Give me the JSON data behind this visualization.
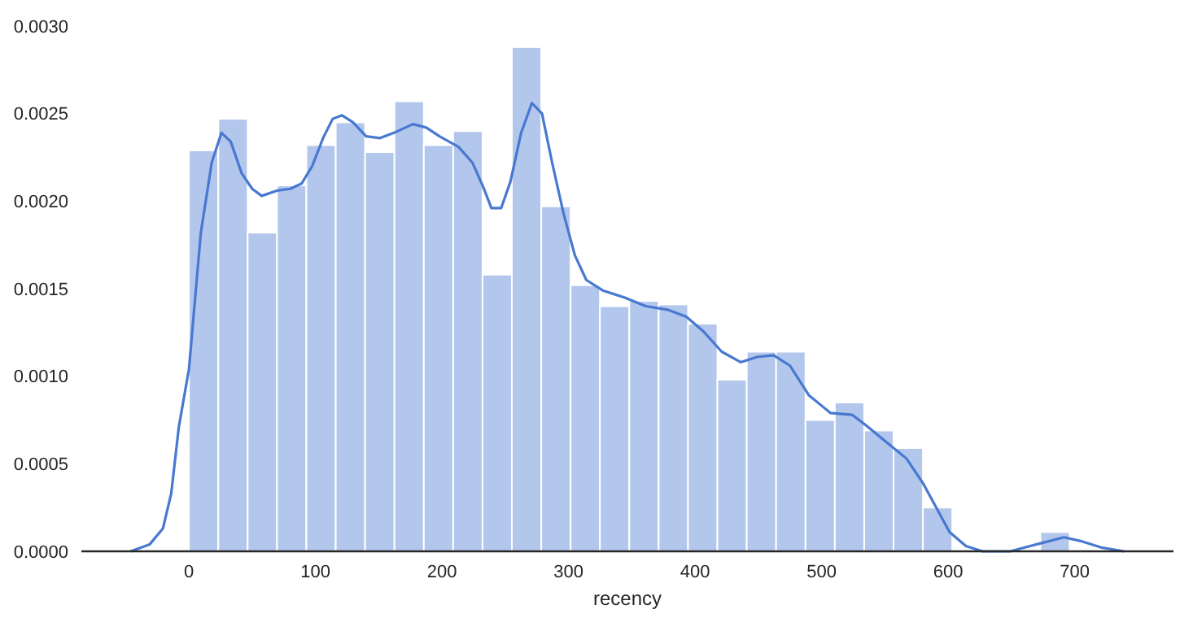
{
  "chart_data": {
    "type": "histogram",
    "xlabel": "recency",
    "xlim": [
      -85,
      778
    ],
    "xticks": [
      0,
      100,
      200,
      300,
      400,
      500,
      600,
      700
    ],
    "ylim": [
      0,
      0.003
    ],
    "yticks": [
      {
        "value": 0,
        "label": "0.0000"
      },
      {
        "value": 0.0005,
        "label": "0.0005"
      },
      {
        "value": 0.001,
        "label": "0.0010"
      },
      {
        "value": 0.0015,
        "label": "0.0015"
      },
      {
        "value": 0.002,
        "label": "0.0020"
      },
      {
        "value": 0.0025,
        "label": "0.0025"
      },
      {
        "value": 0.003,
        "label": "0.0030"
      }
    ],
    "grid": false,
    "series": [
      {
        "color": "#b3c7ec",
        "bins": [
          0,
          23.2,
          46.4,
          69.6,
          92.8,
          116,
          139.2,
          162.4,
          185.6,
          208.8,
          232,
          255.2,
          278.4,
          301.6,
          324.8,
          348,
          371.2,
          394.4,
          417.6,
          440.8,
          464,
          487.2,
          510.4,
          533.6,
          556.8,
          580,
          603.2,
          626.4,
          649.6,
          672.8,
          696
        ],
        "values": [
          0.00229,
          0.00247,
          0.00182,
          0.00209,
          0.00232,
          0.00245,
          0.00228,
          0.00257,
          0.00232,
          0.0024,
          0.00158,
          0.00288,
          0.00197,
          0.00152,
          0.0014,
          0.00143,
          0.00141,
          0.0013,
          0.00098,
          0.00114,
          0.00114,
          0.00075,
          0.00085,
          0.00069,
          0.00059,
          0.00025,
          0,
          0,
          0,
          0.00011
        ]
      },
      {
        "type": "line",
        "color": "#4878d0",
        "marker": "none",
        "line_style": "solid",
        "x": [
          -46,
          -31,
          -20.6,
          -14,
          -8,
          0,
          9.4,
          18,
          25.7,
          33,
          41.6,
          50,
          57.5,
          69.5,
          80,
          89,
          97.4,
          106,
          113.6,
          121,
          129.6,
          140,
          151,
          162,
          177,
          187.5,
          198,
          213,
          224,
          232.6,
          239,
          246.7,
          254,
          262.5,
          271,
          279,
          287,
          296,
          305,
          314,
          327,
          344,
          361,
          378,
          393,
          406,
          421,
          436,
          449,
          462,
          475,
          490,
          507,
          524,
          535,
          550,
          567,
          580,
          589,
          601,
          614,
          627,
          649,
          670,
          691.5,
          704,
          722,
          739
        ],
        "values": [
          0,
          4e-05,
          0.00013,
          0.00033,
          0.00071,
          0.00104,
          0.00182,
          0.00222,
          0.00239,
          0.00234,
          0.00216,
          0.00207,
          0.00203,
          0.00206,
          0.00207,
          0.0021,
          0.0022,
          0.00236,
          0.00247,
          0.00249,
          0.00245,
          0.00237,
          0.00236,
          0.00239,
          0.00244,
          0.00242,
          0.00237,
          0.00231,
          0.00222,
          0.00208,
          0.00196,
          0.00196,
          0.00211,
          0.00239,
          0.00256,
          0.0025,
          0.00222,
          0.00193,
          0.00169,
          0.00155,
          0.00149,
          0.00145,
          0.0014,
          0.00138,
          0.00134,
          0.00126,
          0.00114,
          0.00108,
          0.00111,
          0.00112,
          0.00106,
          0.00089,
          0.00079,
          0.00078,
          0.00072,
          0.00063,
          0.00053,
          0.00039,
          0.00027,
          0.00011,
          3e-05,
          0,
          0,
          4e-05,
          8e-05,
          6e-05,
          2e-05,
          0
        ]
      }
    ]
  }
}
